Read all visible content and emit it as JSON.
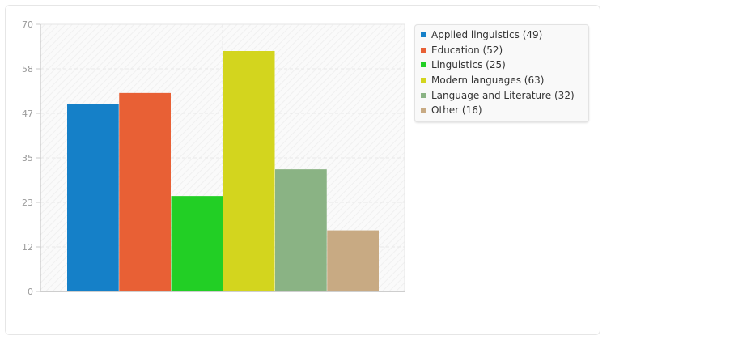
{
  "chart_data": {
    "type": "bar",
    "categories": [
      "Applied linguistics",
      "Education",
      "Linguistics",
      "Modern languages",
      "Language and Literature",
      "Other"
    ],
    "values": [
      49,
      52,
      25,
      63,
      32,
      16
    ],
    "colors": [
      "#1580c8",
      "#e86035",
      "#22cf25",
      "#d3d51e",
      "#8ab384",
      "#c8aa83"
    ],
    "y_ticks": [
      "0",
      "12",
      "23",
      "35",
      "47",
      "58",
      "70"
    ],
    "ylim": [
      0,
      70
    ],
    "grid": true,
    "legend_position": "right",
    "legend_labels": [
      "Applied linguistics (49)",
      "Education (52)",
      "Linguistics (25)",
      "Modern languages (63)",
      "Language and Literature (32)",
      "Other (16)"
    ]
  }
}
